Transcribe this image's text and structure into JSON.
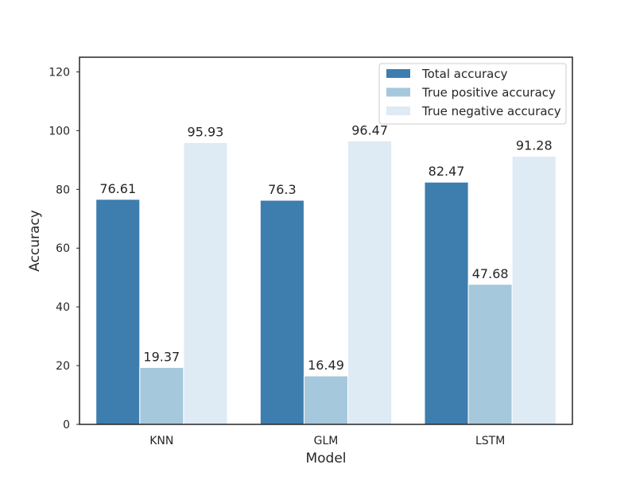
{
  "chart_data": {
    "type": "bar",
    "title": "",
    "xlabel": "Model",
    "ylabel": "Accuracy",
    "categories": [
      "KNN",
      "GLM",
      "LSTM"
    ],
    "ylim": [
      0,
      125
    ],
    "yticks": [
      0,
      20,
      40,
      60,
      80,
      100,
      120
    ],
    "grid": false,
    "legend_position": "top-right",
    "series": [
      {
        "name": "Total accuracy",
        "values": [
          76.61,
          76.3,
          82.47
        ],
        "color": "#3d7eaf",
        "labels": [
          "76.61",
          "76.3",
          "82.47"
        ]
      },
      {
        "name": "True positive accuracy",
        "values": [
          19.37,
          16.49,
          47.68
        ],
        "color": "#a6c8dc",
        "labels": [
          "19.37",
          "16.49",
          "47.68"
        ]
      },
      {
        "name": "True negative accuracy",
        "values": [
          95.93,
          96.47,
          91.28
        ],
        "color": "#deeaf4",
        "labels": [
          "95.93",
          "96.47",
          "91.28"
        ]
      }
    ]
  }
}
